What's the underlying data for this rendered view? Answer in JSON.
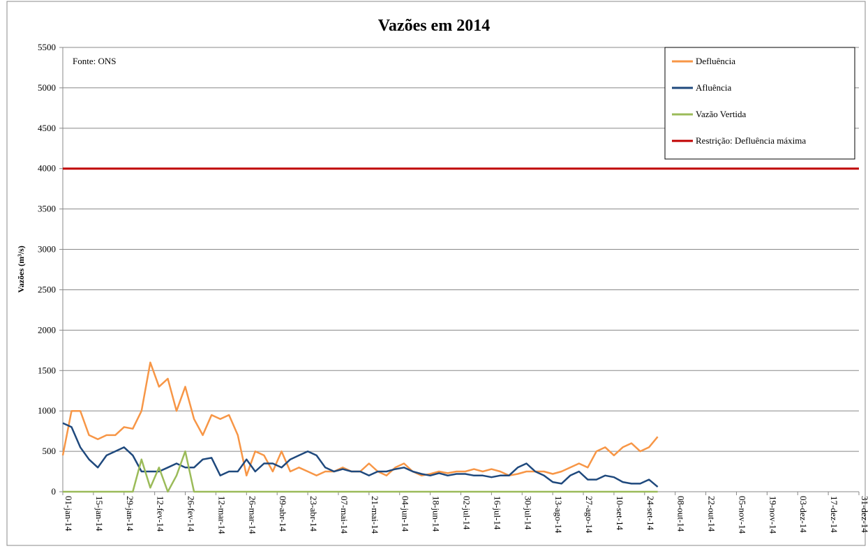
{
  "chart_data": {
    "type": "line",
    "title": "Vazões em 2014",
    "y_label": "Vazões (m³/s)",
    "annotation": "Fonte: ONS",
    "grid": true,
    "legend": "top-right",
    "ylim": [
      0,
      5500
    ],
    "yticks": [
      0,
      500,
      1000,
      1500,
      2000,
      2500,
      3000,
      3500,
      4000,
      4500,
      5000,
      5500
    ],
    "xlim": [
      "01-jan-14",
      "31-dez-14"
    ],
    "xticks": [
      "01-jan-14",
      "15-jan-14",
      "29-jan-14",
      "12-fev-14",
      "26-fev-14",
      "12-mar-14",
      "26-mar-14",
      "09-abr-14",
      "23-abr-14",
      "07-mai-14",
      "21-mai-14",
      "04-jun-14",
      "18-jun-14",
      "02-jul-14",
      "16-jul-14",
      "30-jul-14",
      "13-ago-14",
      "27-ago-14",
      "10-set-14",
      "24-set-14",
      "08-out-14",
      "22-out-14",
      "05-nov-14",
      "19-nov-14",
      "03-dez-14",
      "17-dez-14",
      "31-dez-14"
    ],
    "x": [
      "01-jan-14",
      "05-jan-14",
      "09-jan-14",
      "13-jan-14",
      "17-jan-14",
      "21-jan-14",
      "25-jan-14",
      "29-jan-14",
      "02-fev-14",
      "06-fev-14",
      "10-fev-14",
      "14-fev-14",
      "18-fev-14",
      "22-fev-14",
      "26-fev-14",
      "02-mar-14",
      "06-mar-14",
      "10-mar-14",
      "14-mar-14",
      "18-mar-14",
      "22-mar-14",
      "26-mar-14",
      "30-mar-14",
      "03-abr-14",
      "07-abr-14",
      "11-abr-14",
      "15-abr-14",
      "19-abr-14",
      "23-abr-14",
      "27-abr-14",
      "01-mai-14",
      "05-mai-14",
      "09-mai-14",
      "13-mai-14",
      "17-mai-14",
      "21-mai-14",
      "25-mai-14",
      "29-mai-14",
      "02-jun-14",
      "06-jun-14",
      "10-jun-14",
      "14-jun-14",
      "18-jun-14",
      "22-jun-14",
      "26-jun-14",
      "30-jun-14",
      "04-jul-14",
      "08-jul-14",
      "12-jul-14",
      "16-jul-14",
      "20-jul-14",
      "24-jul-14",
      "28-jul-14",
      "01-ago-14",
      "05-ago-14",
      "09-ago-14",
      "13-ago-14",
      "17-ago-14",
      "21-ago-14",
      "25-ago-14",
      "29-ago-14",
      "02-set-14",
      "06-set-14",
      "10-set-14",
      "14-set-14",
      "18-set-14",
      "22-set-14",
      "26-set-14",
      "30-set-14"
    ],
    "series": [
      {
        "name": "Defluência",
        "color": "#f79646",
        "values": [
          450,
          1000,
          1000,
          700,
          650,
          700,
          700,
          800,
          780,
          1000,
          1600,
          1300,
          1400,
          1000,
          1300,
          900,
          700,
          950,
          900,
          950,
          700,
          200,
          500,
          450,
          250,
          500,
          250,
          300,
          250,
          200,
          250,
          250,
          300,
          250,
          250,
          350,
          250,
          200,
          300,
          350,
          250,
          200,
          220,
          250,
          230,
          250,
          250,
          280,
          250,
          280,
          250,
          200,
          220,
          250,
          250,
          250,
          220,
          250,
          300,
          350,
          300,
          500,
          550,
          450,
          550,
          600,
          500,
          550,
          680
        ]
      },
      {
        "name": "Afluência",
        "color": "#1f497d",
        "values": [
          850,
          800,
          550,
          400,
          300,
          450,
          500,
          550,
          450,
          250,
          250,
          250,
          300,
          350,
          300,
          300,
          400,
          420,
          200,
          250,
          250,
          400,
          250,
          350,
          350,
          300,
          400,
          450,
          500,
          450,
          300,
          250,
          280,
          250,
          250,
          200,
          250,
          250,
          280,
          300,
          250,
          220,
          200,
          230,
          200,
          220,
          220,
          200,
          200,
          180,
          200,
          200,
          300,
          350,
          250,
          200,
          120,
          100,
          200,
          250,
          150,
          150,
          200,
          180,
          120,
          100,
          100,
          150,
          60
        ]
      },
      {
        "name": "Vazão Vertida",
        "color": "#9bbb59",
        "values": [
          0,
          0,
          0,
          0,
          0,
          0,
          0,
          0,
          0,
          400,
          50,
          300,
          0,
          200,
          500,
          0,
          0,
          0,
          0,
          0,
          0,
          0,
          0,
          0,
          0,
          0,
          0,
          0,
          0,
          0,
          0,
          0,
          0,
          0,
          0,
          0,
          0,
          0,
          0,
          0,
          0,
          0,
          0,
          0,
          0,
          0,
          0,
          0,
          0,
          0,
          0,
          0,
          0,
          0,
          0,
          0,
          0,
          0,
          0,
          0,
          0,
          0,
          0,
          0,
          0,
          0,
          0,
          0,
          0
        ]
      },
      {
        "name": "Restrição: Defluência máxima",
        "color": "#c00000",
        "x": [
          "01-jan-14",
          "31-dez-14"
        ],
        "values": [
          4000,
          4000
        ]
      }
    ]
  }
}
